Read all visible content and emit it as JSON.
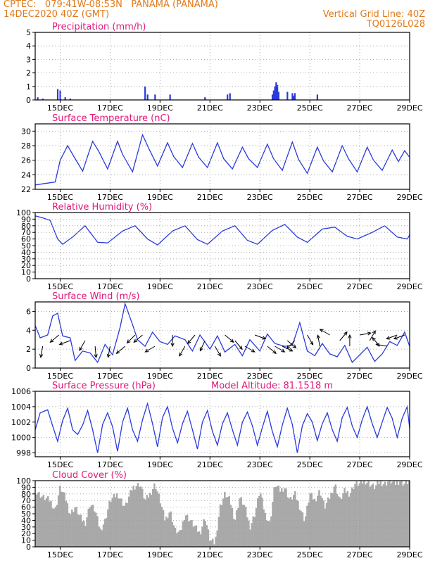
{
  "header": {
    "line1_left": "CPTEC:   079:41W-08:53N   PANAMA (PANAMA)",
    "line2_left": "14DEC2020 40Z (GMT)",
    "line1_right": "Vertical Grid Line: 40Z",
    "line2_right": "TQ0126L028"
  },
  "colors": {
    "header": "#e07a1a",
    "title": "#e0187a",
    "series": "#2a3adc",
    "cloud": "#a9a9a9",
    "grid": "#9a9a9a"
  },
  "x_axis": {
    "ticks": [
      "15DEC",
      "17DEC",
      "19DEC",
      "21DEC",
      "23DEC",
      "25DEC",
      "27DEC",
      "29DEC"
    ],
    "tick_days": [
      15,
      17,
      19,
      21,
      23,
      25,
      27,
      29
    ],
    "start_day": 14.0,
    "end_day": 29.0
  },
  "chart_data": [
    {
      "id": "precip",
      "type": "bar",
      "title": "Precipitation (mm/h)",
      "ylim": [
        0,
        5
      ],
      "yticks": [
        0,
        1,
        2,
        3,
        4,
        5
      ],
      "x": [
        14.1,
        14.3,
        14.9,
        15.0,
        15.2,
        15.4,
        18.4,
        18.5,
        18.8,
        19.4,
        20.8,
        21.7,
        21.8,
        23.5,
        23.55,
        23.6,
        23.65,
        23.7,
        23.75,
        24.1,
        24.3,
        24.35,
        24.4,
        25.3
      ],
      "values": [
        0.2,
        0.1,
        0.8,
        0.7,
        0.2,
        0.1,
        1.0,
        0.4,
        0.4,
        0.4,
        0.2,
        0.4,
        0.5,
        0.4,
        0.7,
        1.0,
        1.3,
        1.1,
        0.6,
        0.6,
        0.5,
        0.3,
        0.5,
        0.4
      ]
    },
    {
      "id": "temp",
      "type": "line",
      "title": "Surface Temperature (nC)",
      "ylim": [
        22,
        31
      ],
      "yticks": [
        22,
        24,
        26,
        28,
        30
      ],
      "x": [
        14.0,
        14.4,
        14.8,
        15.0,
        15.3,
        15.55,
        15.9,
        16.3,
        16.55,
        16.9,
        17.3,
        17.5,
        17.9,
        18.3,
        18.55,
        18.9,
        19.3,
        19.55,
        19.9,
        20.3,
        20.55,
        20.9,
        21.3,
        21.55,
        21.9,
        22.3,
        22.55,
        22.9,
        23.3,
        23.55,
        23.9,
        24.3,
        24.55,
        24.9,
        25.3,
        25.55,
        25.9,
        26.3,
        26.55,
        26.9,
        27.3,
        27.55,
        27.9,
        28.3,
        28.55,
        28.8,
        29.0
      ],
      "values": [
        22.6,
        22.8,
        23.0,
        26.0,
        28.0,
        26.5,
        24.5,
        28.6,
        27.2,
        24.8,
        28.6,
        26.8,
        24.4,
        29.5,
        27.6,
        25.2,
        28.4,
        26.5,
        25.0,
        28.3,
        26.4,
        25.0,
        28.4,
        26.2,
        24.8,
        27.8,
        26.2,
        25.0,
        28.2,
        26.2,
        24.6,
        28.5,
        26.1,
        24.2,
        27.8,
        25.9,
        24.4,
        28.0,
        26.2,
        24.4,
        27.8,
        26.0,
        24.6,
        27.4,
        25.8,
        27.3,
        26.4
      ]
    },
    {
      "id": "rh",
      "type": "line",
      "title": "Relative Humidity (%)",
      "ylim": [
        0,
        100
      ],
      "yticks": [
        0,
        10,
        20,
        30,
        40,
        50,
        60,
        70,
        80,
        90,
        100
      ],
      "x": [
        14.0,
        14.3,
        14.6,
        14.9,
        15.1,
        15.5,
        16.0,
        16.5,
        16.9,
        17.5,
        18.0,
        18.5,
        18.9,
        19.5,
        20.0,
        20.5,
        20.9,
        21.5,
        22.0,
        22.5,
        22.9,
        23.5,
        24.0,
        24.5,
        24.9,
        25.5,
        26.0,
        26.5,
        26.9,
        27.5,
        28.0,
        28.5,
        28.9,
        29.0
      ],
      "values": [
        95,
        92,
        88,
        60,
        52,
        63,
        80,
        55,
        54,
        72,
        80,
        60,
        51,
        72,
        80,
        59,
        52,
        72,
        80,
        58,
        52,
        73,
        82,
        63,
        55,
        75,
        78,
        64,
        60,
        70,
        80,
        63,
        60,
        66
      ]
    },
    {
      "id": "wind",
      "type": "line",
      "title": "Surface Wind (m/s)",
      "ylim": [
        0,
        7
      ],
      "yticks": [
        0,
        2,
        4,
        6
      ],
      "x": [
        14.0,
        14.2,
        14.5,
        14.7,
        14.9,
        15.1,
        15.4,
        15.6,
        15.9,
        16.2,
        16.5,
        16.8,
        17.1,
        17.4,
        17.6,
        17.9,
        18.1,
        18.4,
        18.7,
        19.0,
        19.3,
        19.6,
        20.0,
        20.3,
        20.6,
        21.0,
        21.3,
        21.6,
        22.0,
        22.3,
        22.6,
        23.0,
        23.3,
        23.6,
        24.0,
        24.3,
        24.6,
        24.9,
        25.2,
        25.5,
        25.8,
        26.1,
        26.4,
        26.7,
        27.0,
        27.3,
        27.6,
        27.9,
        28.2,
        28.5,
        28.8,
        29.0
      ],
      "values": [
        4.5,
        3.2,
        3.5,
        5.5,
        5.8,
        3.4,
        3.2,
        0.8,
        1.8,
        1.6,
        0.6,
        2.5,
        1.4,
        4.3,
        6.8,
        4.6,
        3.0,
        2.3,
        3.8,
        2.8,
        2.5,
        3.4,
        3.0,
        1.8,
        3.5,
        2.0,
        3.4,
        1.7,
        2.5,
        1.3,
        3.0,
        1.8,
        3.6,
        2.6,
        2.3,
        2.4,
        4.8,
        1.8,
        1.3,
        2.6,
        1.5,
        1.2,
        2.4,
        0.6,
        1.4,
        2.2,
        0.7,
        1.5,
        2.8,
        2.4,
        3.8,
        2.3
      ],
      "arrows": [
        [
          14.3,
          260
        ],
        [
          14.95,
          220
        ],
        [
          15.4,
          200
        ],
        [
          16.0,
          240
        ],
        [
          16.4,
          275
        ],
        [
          17.0,
          260
        ],
        [
          17.6,
          220
        ],
        [
          18.0,
          225
        ],
        [
          18.3,
          220
        ],
        [
          18.8,
          210
        ],
        [
          19.5,
          270
        ],
        [
          20.0,
          240
        ],
        [
          20.4,
          230
        ],
        [
          20.8,
          245
        ],
        [
          21.2,
          300
        ],
        [
          21.6,
          320
        ],
        [
          22.0,
          310
        ],
        [
          22.4,
          330
        ],
        [
          22.8,
          340
        ],
        [
          23.3,
          320
        ],
        [
          23.6,
          330
        ],
        [
          23.9,
          335
        ],
        [
          24.1,
          320
        ],
        [
          24.4,
          225
        ],
        [
          24.9,
          300
        ],
        [
          25.4,
          100
        ],
        [
          25.8,
          150
        ],
        [
          26.2,
          50
        ],
        [
          26.6,
          90
        ],
        [
          27.0,
          10
        ],
        [
          27.4,
          60
        ],
        [
          27.8,
          130
        ],
        [
          28.1,
          170
        ],
        [
          28.5,
          200
        ],
        [
          28.8,
          200
        ]
      ]
    },
    {
      "id": "press",
      "type": "line",
      "title": "Surface Pressure (hPa)",
      "annotation": "Model Altitude: 81.1518 m",
      "ylim": [
        997.5,
        1006
      ],
      "yticks": [
        998,
        1000,
        1002,
        1004,
        1006
      ],
      "x": [
        14.0,
        14.2,
        14.5,
        14.7,
        14.9,
        15.1,
        15.3,
        15.5,
        15.7,
        15.9,
        16.1,
        16.3,
        16.5,
        16.7,
        16.9,
        17.1,
        17.3,
        17.5,
        17.7,
        17.9,
        18.1,
        18.3,
        18.5,
        18.7,
        18.9,
        19.1,
        19.3,
        19.5,
        19.7,
        19.9,
        20.1,
        20.3,
        20.5,
        20.7,
        20.9,
        21.1,
        21.3,
        21.5,
        21.7,
        21.9,
        22.1,
        22.3,
        22.5,
        22.7,
        22.9,
        23.1,
        23.3,
        23.5,
        23.7,
        23.9,
        24.1,
        24.3,
        24.5,
        24.7,
        24.9,
        25.1,
        25.3,
        25.5,
        25.7,
        25.9,
        26.1,
        26.3,
        26.5,
        26.7,
        26.9,
        27.1,
        27.3,
        27.5,
        27.7,
        27.9,
        28.1,
        28.3,
        28.5,
        28.7,
        28.9,
        29.0
      ],
      "values": [
        1001.0,
        1003.2,
        1003.6,
        1001.5,
        999.5,
        1002.2,
        1003.8,
        1001.0,
        1000.4,
        1001.6,
        1003.5,
        1001.0,
        998.0,
        1001.7,
        1003.2,
        1001.4,
        998.2,
        1002.0,
        1003.8,
        1001.0,
        999.5,
        1002.3,
        1004.4,
        1001.8,
        998.8,
        1002.6,
        1004.0,
        1001.2,
        999.3,
        1001.8,
        1003.4,
        1001.0,
        998.5,
        1002.0,
        1003.5,
        1000.8,
        999.0,
        1001.8,
        1003.2,
        1001.0,
        999.0,
        1002.0,
        1003.3,
        1001.5,
        999.0,
        1001.3,
        1003.4,
        1000.8,
        998.8,
        1001.6,
        1003.8,
        1001.7,
        998.0,
        1001.5,
        1003.1,
        1002.0,
        999.6,
        1001.8,
        1003.2,
        1001.0,
        999.5,
        1002.6,
        1003.9,
        1001.5,
        1000.0,
        1002.3,
        1004.0,
        1001.8,
        1000.0,
        1002.0,
        1003.9,
        1002.5,
        1000.0,
        1002.5,
        1004.0,
        1001.2
      ]
    },
    {
      "id": "cloud",
      "type": "area",
      "title": "Cloud Cover (%)",
      "ylim": [
        0,
        100
      ],
      "yticks": [
        0,
        10,
        20,
        30,
        40,
        50,
        60,
        70,
        80,
        90,
        100
      ],
      "x": [
        14.0,
        14.3,
        14.6,
        14.8,
        15.0,
        15.2,
        15.4,
        15.6,
        15.8,
        16.0,
        16.2,
        16.4,
        16.6,
        16.8,
        17.0,
        17.3,
        17.6,
        17.9,
        18.2,
        18.4,
        18.6,
        18.8,
        19.0,
        19.2,
        19.4,
        19.6,
        19.8,
        20.0,
        20.2,
        20.4,
        20.6,
        20.8,
        21.0,
        21.2,
        21.4,
        21.6,
        21.8,
        22.0,
        22.2,
        22.4,
        22.6,
        22.8,
        23.0,
        23.2,
        23.4,
        23.6,
        23.8,
        24.0,
        24.2,
        24.4,
        24.6,
        24.8,
        25.0,
        25.2,
        25.4,
        25.6,
        25.8,
        26.0,
        26.2,
        26.4,
        26.6,
        26.8,
        27.0,
        27.2,
        27.4,
        27.6,
        27.8,
        28.0,
        28.2,
        28.4,
        28.6,
        28.8,
        29.0
      ],
      "values": [
        85,
        75,
        70,
        55,
        90,
        75,
        50,
        60,
        45,
        35,
        65,
        55,
        25,
        40,
        70,
        80,
        60,
        90,
        95,
        70,
        80,
        95,
        70,
        40,
        55,
        25,
        20,
        50,
        40,
        30,
        20,
        45,
        10,
        5,
        60,
        80,
        70,
        40,
        75,
        60,
        30,
        50,
        85,
        50,
        35,
        95,
        85,
        90,
        70,
        80,
        60,
        40,
        80,
        70,
        85,
        60,
        75,
        95,
        70,
        85,
        80,
        95,
        95,
        100,
        95,
        90,
        98,
        95,
        100,
        95,
        100,
        95,
        100
      ]
    }
  ]
}
